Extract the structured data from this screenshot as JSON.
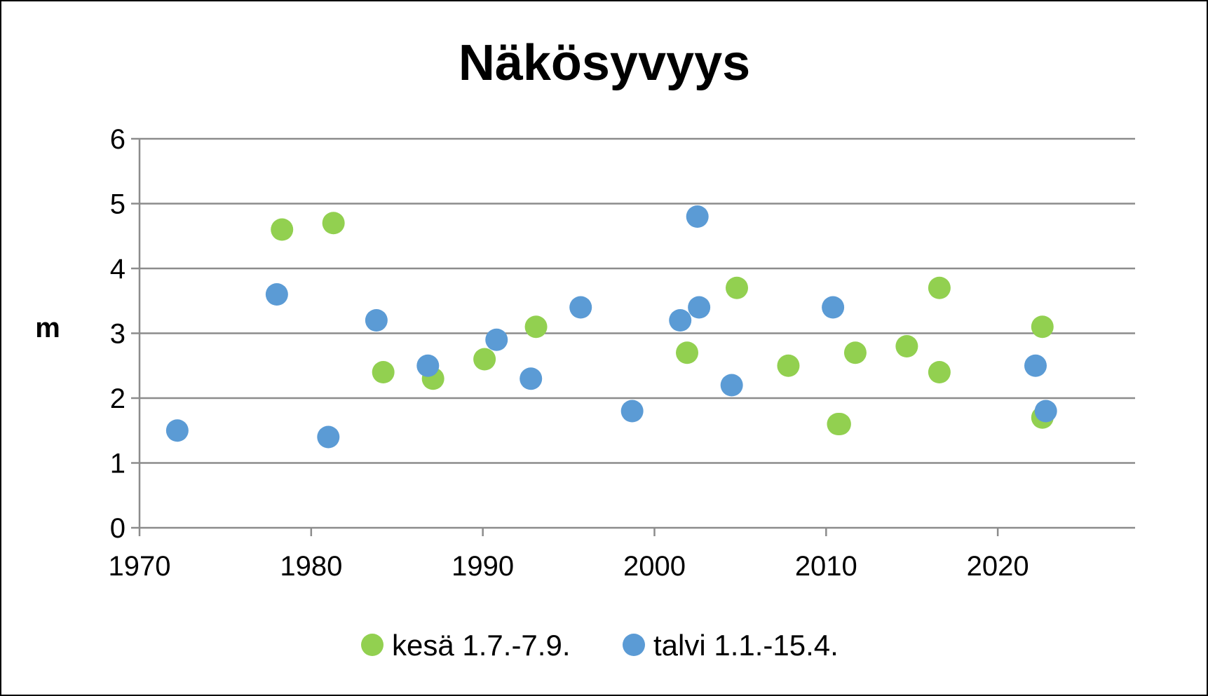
{
  "chart_data": {
    "type": "scatter",
    "title": "Näkösyvyys",
    "xlabel": "",
    "ylabel": "m",
    "xlim": [
      1970,
      2028
    ],
    "ylim": [
      0,
      6
    ],
    "x_ticks": [
      1970,
      1980,
      1990,
      2000,
      2010,
      2020
    ],
    "y_ticks": [
      0,
      1,
      2,
      3,
      4,
      5,
      6
    ],
    "grid": true,
    "legend_position": "bottom",
    "series": [
      {
        "name": "kesä 1.7.-7.9.",
        "color": "#92d050",
        "points": [
          {
            "x": 1978.3,
            "y": 4.6
          },
          {
            "x": 1981.3,
            "y": 4.7
          },
          {
            "x": 1984.2,
            "y": 2.4
          },
          {
            "x": 1987.1,
            "y": 2.3
          },
          {
            "x": 1990.1,
            "y": 2.6
          },
          {
            "x": 1993.1,
            "y": 3.1
          },
          {
            "x": 2001.9,
            "y": 2.7
          },
          {
            "x": 2004.8,
            "y": 3.7
          },
          {
            "x": 2007.8,
            "y": 2.5
          },
          {
            "x": 2010.7,
            "y": 1.6
          },
          {
            "x": 2010.8,
            "y": 1.6
          },
          {
            "x": 2011.7,
            "y": 2.7
          },
          {
            "x": 2014.7,
            "y": 2.8
          },
          {
            "x": 2016.6,
            "y": 3.7
          },
          {
            "x": 2016.6,
            "y": 2.4
          },
          {
            "x": 2022.6,
            "y": 3.1
          },
          {
            "x": 2022.6,
            "y": 1.7
          }
        ]
      },
      {
        "name": "talvi 1.1.-15.4.",
        "color": "#5b9bd5",
        "points": [
          {
            "x": 1972.2,
            "y": 1.5
          },
          {
            "x": 1978.0,
            "y": 3.6
          },
          {
            "x": 1981.0,
            "y": 1.4
          },
          {
            "x": 1983.8,
            "y": 3.2
          },
          {
            "x": 1986.8,
            "y": 2.5
          },
          {
            "x": 1990.8,
            "y": 2.9
          },
          {
            "x": 1992.8,
            "y": 2.3
          },
          {
            "x": 1995.7,
            "y": 3.4
          },
          {
            "x": 1998.7,
            "y": 1.8
          },
          {
            "x": 2001.5,
            "y": 3.2
          },
          {
            "x": 2002.5,
            "y": 4.8
          },
          {
            "x": 2002.6,
            "y": 3.4
          },
          {
            "x": 2004.5,
            "y": 2.2
          },
          {
            "x": 2010.4,
            "y": 3.4
          },
          {
            "x": 2022.2,
            "y": 2.5
          },
          {
            "x": 2022.8,
            "y": 1.8
          }
        ]
      }
    ]
  }
}
